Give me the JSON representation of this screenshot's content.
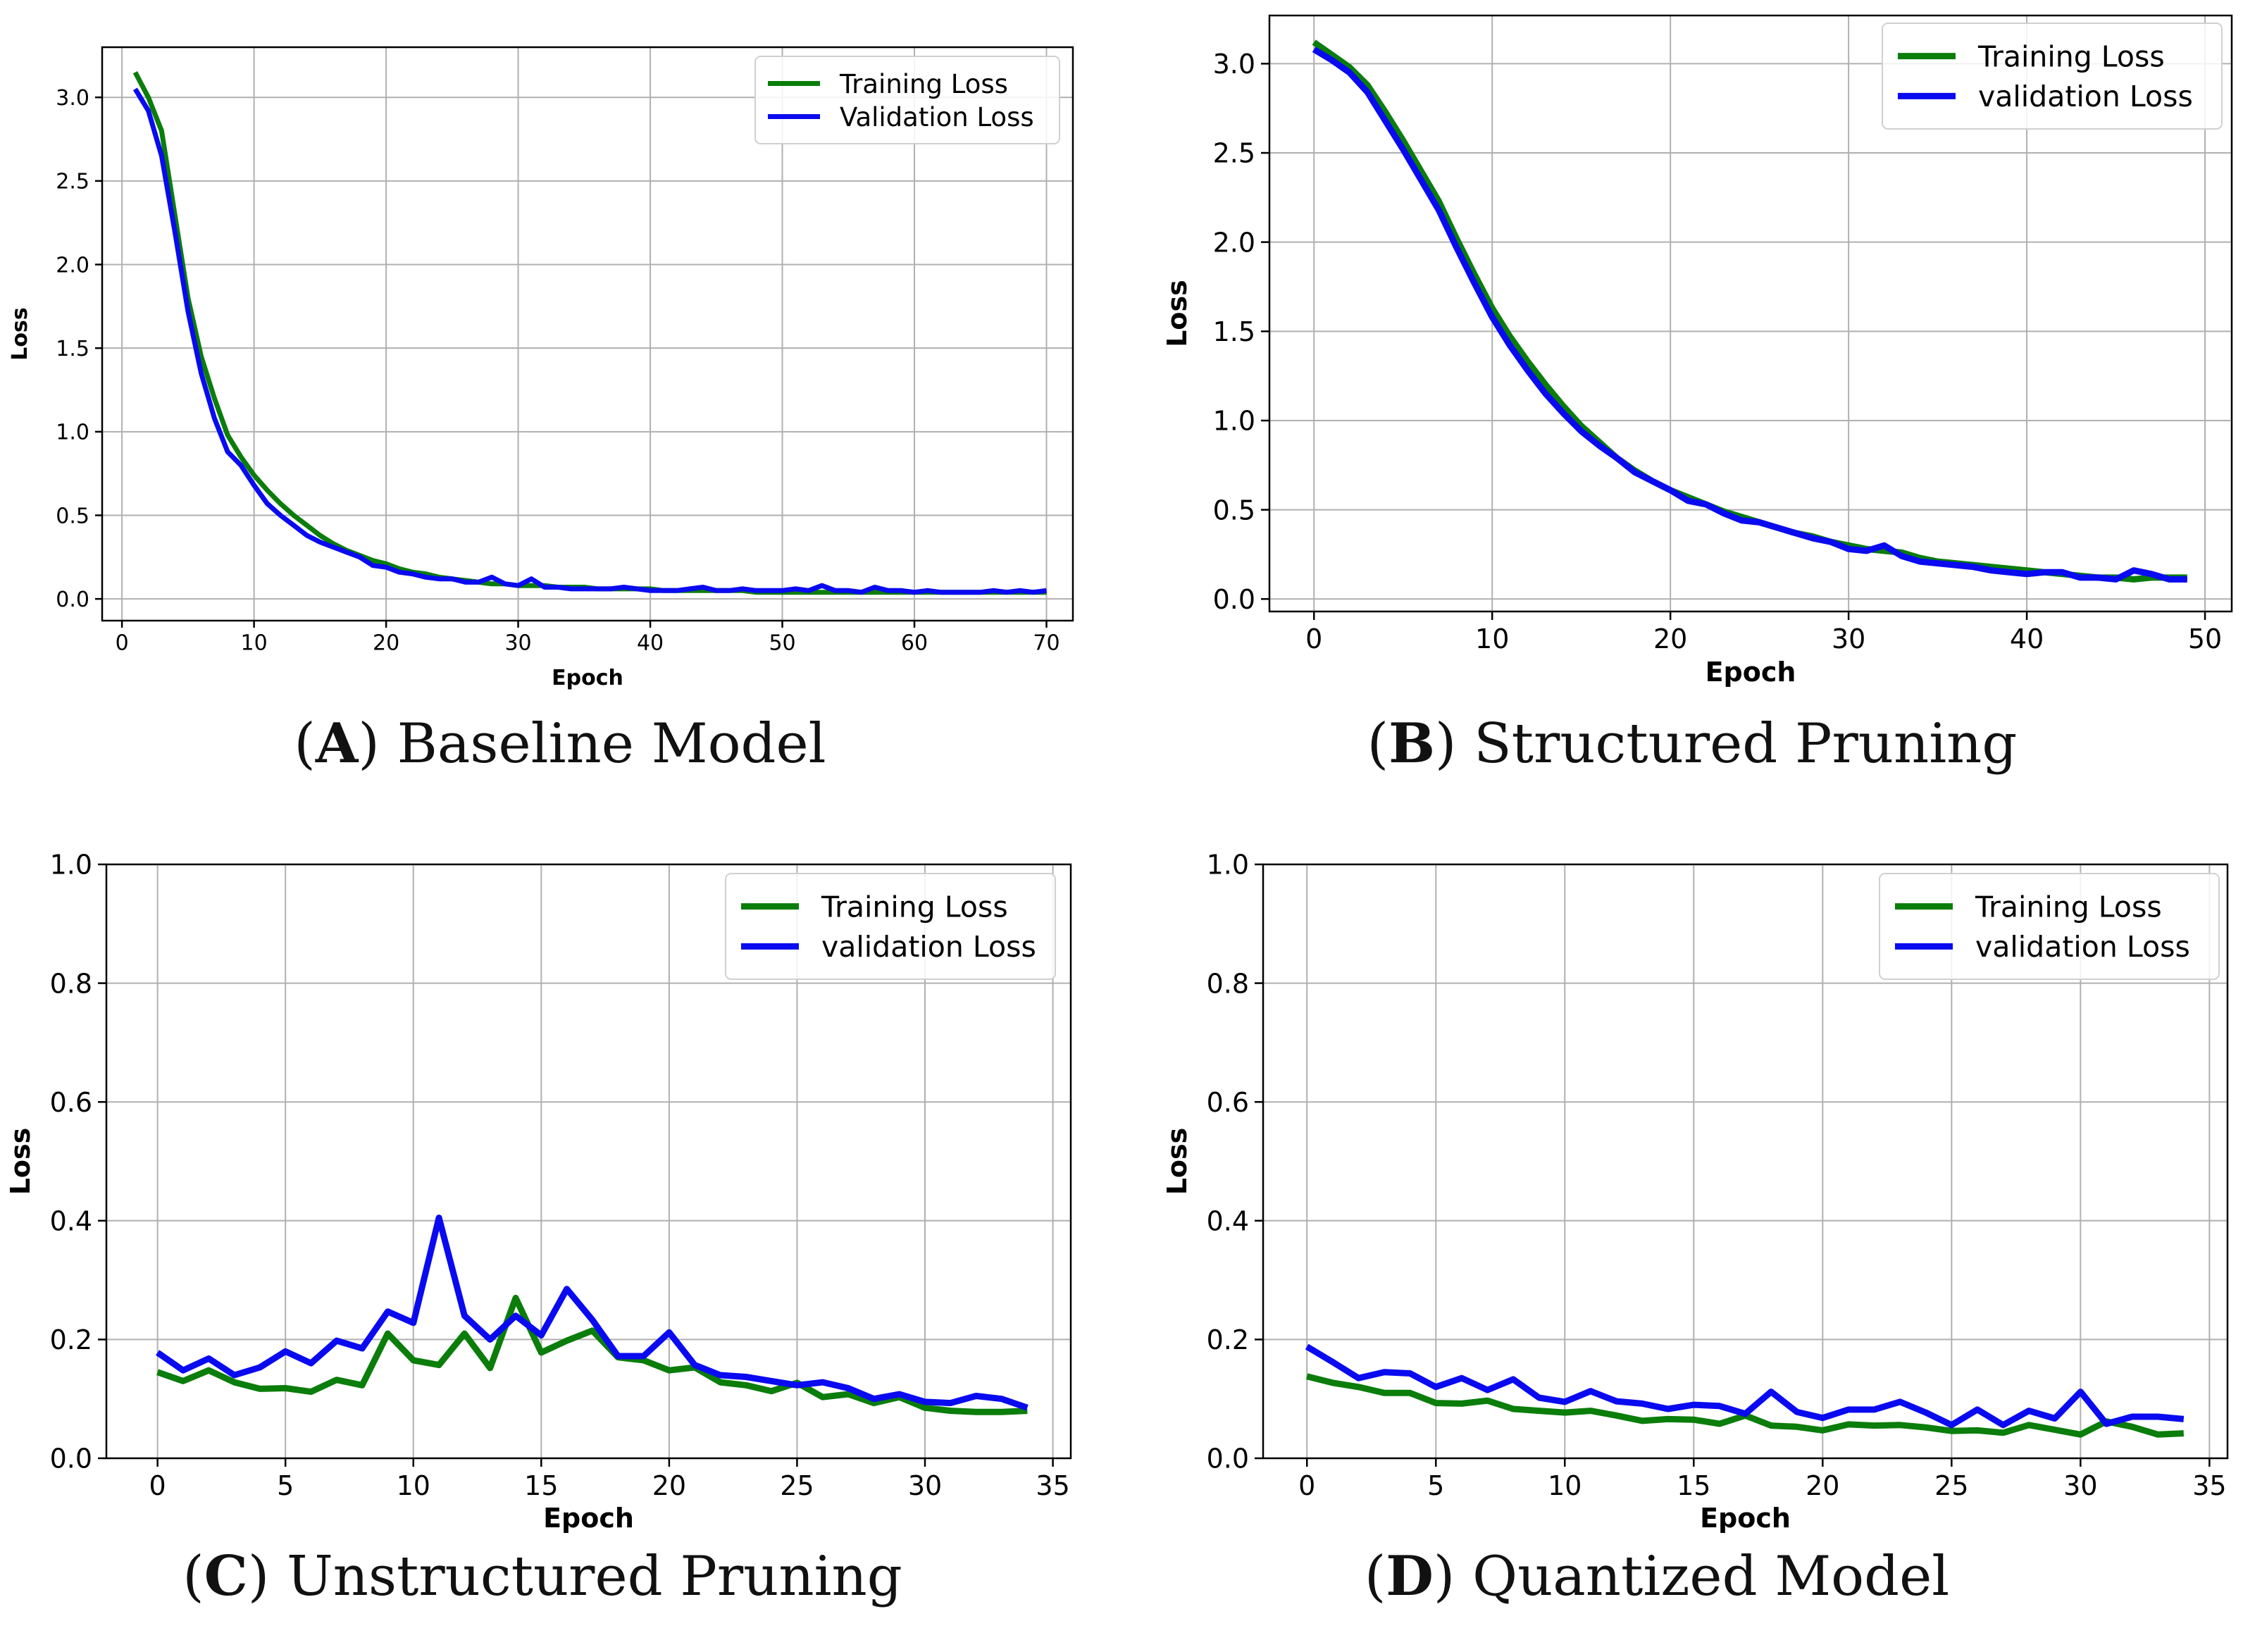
{
  "colors": {
    "training": "#0a7d0a",
    "validation": "#0a0af0",
    "grid": "#b0b0b0",
    "axis": "#000000"
  },
  "chart_data": [
    {
      "id": "A",
      "type": "line",
      "caption_letter": "A",
      "caption_text": "Baseline Model",
      "xlabel": "Epoch",
      "ylabel": "Loss",
      "xlim": [
        -1.5,
        72
      ],
      "ylim": [
        -0.13,
        3.3
      ],
      "xticks": [
        0,
        10,
        20,
        30,
        40,
        50,
        60,
        70
      ],
      "yticks": [
        0.0,
        0.5,
        1.0,
        1.5,
        2.0,
        2.5,
        3.0
      ],
      "ytick_labels": [
        "0.0",
        "0.5",
        "1.0",
        "1.5",
        "2.0",
        "2.5",
        "3.0"
      ],
      "legend_position": "top-right",
      "series": [
        {
          "name": "Training Loss",
          "color_key": "training",
          "x": [
            1,
            2,
            3,
            4,
            5,
            6,
            7,
            8,
            9,
            10,
            11,
            12,
            13,
            14,
            15,
            16,
            17,
            18,
            19,
            20,
            21,
            22,
            23,
            24,
            25,
            26,
            27,
            28,
            29,
            30,
            31,
            32,
            33,
            34,
            35,
            36,
            37,
            38,
            39,
            40,
            41,
            42,
            43,
            44,
            45,
            46,
            47,
            48,
            49,
            50,
            51,
            52,
            53,
            54,
            55,
            56,
            57,
            58,
            59,
            60,
            61,
            62,
            63,
            64,
            65,
            66,
            67,
            68,
            69,
            70
          ],
          "values": [
            3.15,
            3.0,
            2.8,
            2.3,
            1.8,
            1.45,
            1.2,
            0.98,
            0.85,
            0.74,
            0.65,
            0.57,
            0.5,
            0.44,
            0.38,
            0.33,
            0.29,
            0.26,
            0.23,
            0.21,
            0.18,
            0.16,
            0.15,
            0.13,
            0.12,
            0.11,
            0.1,
            0.09,
            0.09,
            0.08,
            0.08,
            0.08,
            0.07,
            0.07,
            0.07,
            0.06,
            0.06,
            0.06,
            0.06,
            0.06,
            0.05,
            0.05,
            0.05,
            0.05,
            0.05,
            0.05,
            0.05,
            0.04,
            0.04,
            0.04,
            0.04,
            0.04,
            0.04,
            0.04,
            0.04,
            0.04,
            0.04,
            0.04,
            0.04,
            0.04,
            0.04,
            0.04,
            0.04,
            0.04,
            0.04,
            0.04,
            0.04,
            0.04,
            0.04,
            0.04
          ]
        },
        {
          "name": "Validation Loss",
          "color_key": "validation",
          "x": [
            1,
            2,
            3,
            4,
            5,
            6,
            7,
            8,
            9,
            10,
            11,
            12,
            13,
            14,
            15,
            16,
            17,
            18,
            19,
            20,
            21,
            22,
            23,
            24,
            25,
            26,
            27,
            28,
            29,
            30,
            31,
            32,
            33,
            34,
            35,
            36,
            37,
            38,
            39,
            40,
            41,
            42,
            43,
            44,
            45,
            46,
            47,
            48,
            49,
            50,
            51,
            52,
            53,
            54,
            55,
            56,
            57,
            58,
            59,
            60,
            61,
            62,
            63,
            64,
            65,
            66,
            67,
            68,
            69,
            70
          ],
          "values": [
            3.05,
            2.92,
            2.65,
            2.2,
            1.72,
            1.35,
            1.08,
            0.88,
            0.8,
            0.68,
            0.57,
            0.5,
            0.44,
            0.38,
            0.34,
            0.31,
            0.28,
            0.25,
            0.2,
            0.19,
            0.16,
            0.15,
            0.13,
            0.12,
            0.12,
            0.1,
            0.1,
            0.13,
            0.09,
            0.08,
            0.12,
            0.07,
            0.07,
            0.06,
            0.06,
            0.06,
            0.06,
            0.07,
            0.06,
            0.05,
            0.05,
            0.05,
            0.06,
            0.07,
            0.05,
            0.05,
            0.06,
            0.05,
            0.05,
            0.05,
            0.06,
            0.05,
            0.08,
            0.05,
            0.05,
            0.04,
            0.07,
            0.05,
            0.05,
            0.04,
            0.05,
            0.04,
            0.04,
            0.04,
            0.04,
            0.05,
            0.04,
            0.05,
            0.04,
            0.05
          ]
        }
      ]
    },
    {
      "id": "B",
      "type": "line",
      "caption_letter": "B",
      "caption_text": "Structured Pruning",
      "xlabel": "Epoch",
      "ylabel": "Loss",
      "xlim": [
        -2.5,
        51.5
      ],
      "ylim": [
        -0.07,
        3.27
      ],
      "xticks": [
        0,
        10,
        20,
        30,
        40,
        50
      ],
      "yticks": [
        0.0,
        0.5,
        1.0,
        1.5,
        2.0,
        2.5,
        3.0
      ],
      "ytick_labels": [
        "0.0",
        "0.5",
        "1.0",
        "1.5",
        "2.0",
        "2.5",
        "3.0"
      ],
      "legend_position": "top-right",
      "series": [
        {
          "name": "Training Loss",
          "color_key": "training",
          "x": [
            0,
            1,
            2,
            3,
            4,
            5,
            6,
            7,
            8,
            9,
            10,
            11,
            12,
            13,
            14,
            15,
            16,
            17,
            18,
            19,
            20,
            21,
            22,
            23,
            24,
            25,
            26,
            27,
            28,
            29,
            30,
            31,
            32,
            33,
            34,
            35,
            36,
            37,
            38,
            39,
            40,
            41,
            42,
            43,
            44,
            45,
            46,
            47,
            48,
            49
          ],
          "values": [
            3.12,
            3.05,
            2.98,
            2.88,
            2.73,
            2.57,
            2.4,
            2.23,
            2.02,
            1.82,
            1.63,
            1.47,
            1.33,
            1.2,
            1.08,
            0.97,
            0.88,
            0.79,
            0.72,
            0.66,
            0.61,
            0.57,
            0.53,
            0.49,
            0.46,
            0.43,
            0.4,
            0.37,
            0.35,
            0.32,
            0.3,
            0.28,
            0.27,
            0.26,
            0.23,
            0.21,
            0.2,
            0.19,
            0.18,
            0.17,
            0.16,
            0.15,
            0.14,
            0.13,
            0.12,
            0.12,
            0.11,
            0.12,
            0.12,
            0.12
          ]
        },
        {
          "name": "validation Loss",
          "color_key": "validation",
          "x": [
            0,
            1,
            2,
            3,
            4,
            5,
            6,
            7,
            8,
            9,
            10,
            11,
            12,
            13,
            14,
            15,
            16,
            17,
            18,
            19,
            20,
            21,
            22,
            23,
            24,
            25,
            26,
            27,
            28,
            29,
            30,
            31,
            32,
            33,
            34,
            35,
            36,
            37,
            38,
            39,
            40,
            41,
            42,
            43,
            44,
            45,
            46,
            47,
            48,
            49
          ],
          "values": [
            3.08,
            3.02,
            2.95,
            2.84,
            2.68,
            2.52,
            2.35,
            2.18,
            1.97,
            1.77,
            1.58,
            1.42,
            1.28,
            1.15,
            1.04,
            0.94,
            0.86,
            0.79,
            0.71,
            0.66,
            0.61,
            0.55,
            0.53,
            0.48,
            0.44,
            0.43,
            0.4,
            0.37,
            0.34,
            0.32,
            0.28,
            0.27,
            0.3,
            0.24,
            0.21,
            0.2,
            0.19,
            0.18,
            0.16,
            0.15,
            0.14,
            0.15,
            0.15,
            0.12,
            0.12,
            0.11,
            0.16,
            0.14,
            0.11,
            0.11
          ]
        }
      ]
    },
    {
      "id": "C",
      "type": "line",
      "caption_letter": "C",
      "caption_text": "Unstructured Pruning",
      "xlabel": "Epoch",
      "ylabel": "Loss",
      "xlim": [
        -2.0,
        35.7
      ],
      "ylim": [
        0.0,
        1.0
      ],
      "xticks": [
        0,
        5,
        10,
        15,
        20,
        25,
        30,
        35
      ],
      "yticks": [
        0.0,
        0.2,
        0.4,
        0.6,
        0.8,
        1.0
      ],
      "ytick_labels": [
        "0.0",
        "0.2",
        "0.4",
        "0.6",
        "0.8",
        "1.0"
      ],
      "legend_position": "top-right",
      "series": [
        {
          "name": "Training Loss",
          "color_key": "training",
          "x": [
            0,
            1,
            2,
            3,
            4,
            5,
            6,
            7,
            8,
            9,
            10,
            11,
            12,
            13,
            14,
            15,
            16,
            17,
            18,
            19,
            20,
            21,
            22,
            23,
            24,
            25,
            26,
            27,
            28,
            29,
            30,
            31,
            32,
            33,
            34
          ],
          "values": [
            0.145,
            0.13,
            0.148,
            0.128,
            0.117,
            0.118,
            0.112,
            0.132,
            0.123,
            0.21,
            0.165,
            0.157,
            0.21,
            0.152,
            0.27,
            0.178,
            0.198,
            0.215,
            0.17,
            0.165,
            0.148,
            0.153,
            0.128,
            0.123,
            0.113,
            0.127,
            0.103,
            0.108,
            0.093,
            0.103,
            0.085,
            0.08,
            0.078,
            0.078,
            0.08
          ]
        },
        {
          "name": "validation Loss",
          "color_key": "validation",
          "x": [
            0,
            1,
            2,
            3,
            4,
            5,
            6,
            7,
            8,
            9,
            10,
            11,
            12,
            13,
            14,
            15,
            16,
            17,
            18,
            19,
            20,
            21,
            22,
            23,
            24,
            25,
            26,
            27,
            28,
            29,
            30,
            31,
            32,
            33,
            34
          ],
          "values": [
            0.178,
            0.148,
            0.168,
            0.14,
            0.153,
            0.18,
            0.16,
            0.198,
            0.185,
            0.247,
            0.228,
            0.405,
            0.24,
            0.2,
            0.24,
            0.207,
            0.285,
            0.233,
            0.172,
            0.172,
            0.212,
            0.157,
            0.14,
            0.137,
            0.13,
            0.123,
            0.128,
            0.118,
            0.1,
            0.108,
            0.095,
            0.093,
            0.105,
            0.1,
            0.085
          ]
        }
      ]
    },
    {
      "id": "D",
      "type": "line",
      "caption_letter": "D",
      "caption_text": "Quantized Model",
      "xlabel": "Epoch",
      "ylabel": "Loss",
      "xlim": [
        -1.7,
        35.7
      ],
      "ylim": [
        0.0,
        1.0
      ],
      "xticks": [
        0,
        5,
        10,
        15,
        20,
        25,
        30,
        35
      ],
      "yticks": [
        0.0,
        0.2,
        0.4,
        0.6,
        0.8,
        1.0
      ],
      "ytick_labels": [
        "0.0",
        "0.2",
        "0.4",
        "0.6",
        "0.8",
        "1.0"
      ],
      "legend_position": "top-right",
      "series": [
        {
          "name": "Training Loss",
          "color_key": "training",
          "x": [
            0,
            1,
            2,
            3,
            4,
            5,
            6,
            7,
            8,
            9,
            10,
            11,
            12,
            13,
            14,
            15,
            16,
            17,
            18,
            19,
            20,
            21,
            22,
            23,
            24,
            25,
            26,
            27,
            28,
            29,
            30,
            31,
            32,
            33,
            34
          ],
          "values": [
            0.138,
            0.127,
            0.12,
            0.11,
            0.11,
            0.093,
            0.092,
            0.097,
            0.083,
            0.08,
            0.077,
            0.08,
            0.072,
            0.063,
            0.066,
            0.065,
            0.058,
            0.072,
            0.055,
            0.053,
            0.047,
            0.057,
            0.055,
            0.056,
            0.052,
            0.046,
            0.047,
            0.043,
            0.056,
            0.048,
            0.04,
            0.062,
            0.053,
            0.04,
            0.042
          ]
        },
        {
          "name": "validation Loss",
          "color_key": "validation",
          "x": [
            0,
            1,
            2,
            3,
            4,
            5,
            6,
            7,
            8,
            9,
            10,
            11,
            12,
            13,
            14,
            15,
            16,
            17,
            18,
            19,
            20,
            21,
            22,
            23,
            24,
            25,
            26,
            27,
            28,
            29,
            30,
            31,
            32,
            33,
            34
          ],
          "values": [
            0.188,
            0.162,
            0.135,
            0.145,
            0.143,
            0.12,
            0.135,
            0.115,
            0.133,
            0.102,
            0.095,
            0.113,
            0.096,
            0.092,
            0.083,
            0.09,
            0.088,
            0.075,
            0.112,
            0.078,
            0.068,
            0.082,
            0.082,
            0.095,
            0.077,
            0.056,
            0.082,
            0.056,
            0.08,
            0.067,
            0.112,
            0.058,
            0.07,
            0.07,
            0.066
          ]
        }
      ]
    }
  ]
}
